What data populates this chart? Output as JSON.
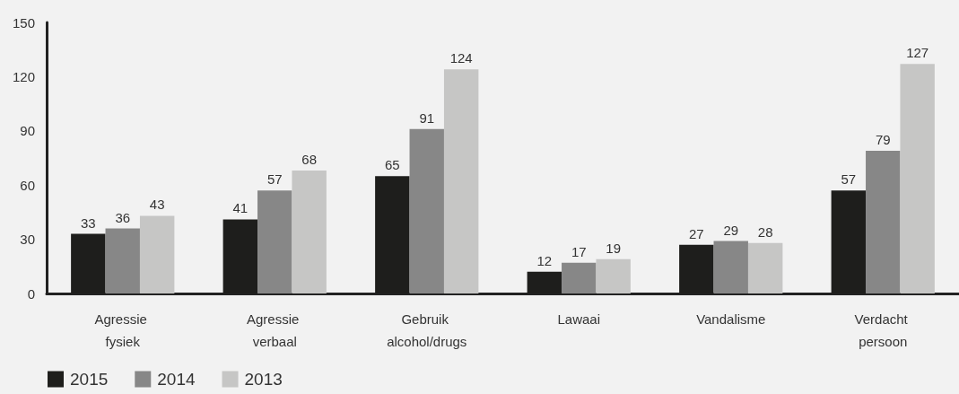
{
  "chart_data": {
    "type": "bar",
    "categories": [
      "Agressie fysiek",
      "Agressie verbaal",
      "Gebruik alcohol/drugs",
      "Lawaai",
      "Vandalisme",
      "Verdacht persoon"
    ],
    "series": [
      {
        "name": "2015",
        "color": "#1e1e1c",
        "values": [
          33,
          41,
          65,
          12,
          27,
          57
        ]
      },
      {
        "name": "2014",
        "color": "#878787",
        "values": [
          36,
          57,
          91,
          17,
          29,
          79
        ]
      },
      {
        "name": "2013",
        "color": "#c6c6c5",
        "values": [
          43,
          68,
          124,
          19,
          28,
          127
        ]
      }
    ],
    "ylim": [
      0,
      150
    ],
    "yticks": [
      0,
      30,
      60,
      90,
      120,
      150
    ],
    "data_labels": true,
    "legend": "bottom left",
    "grid": false
  }
}
